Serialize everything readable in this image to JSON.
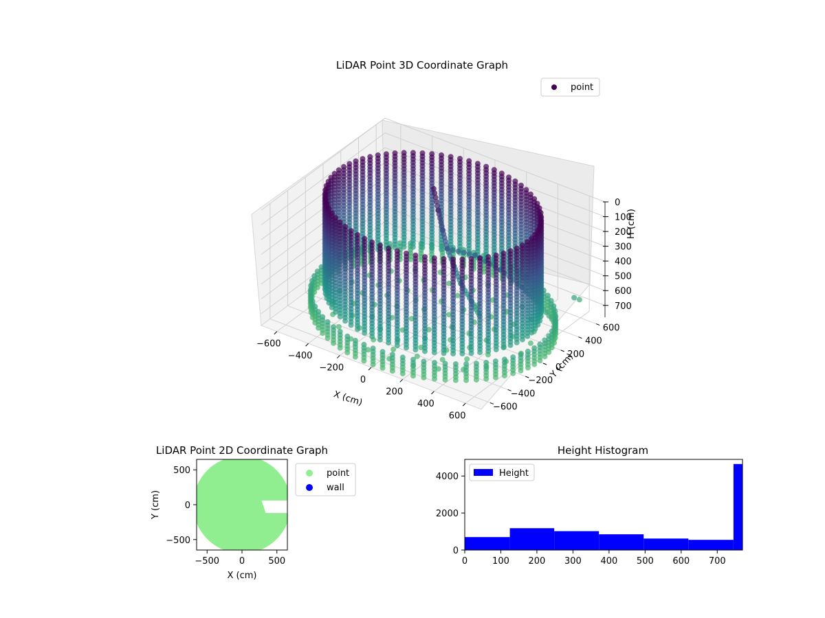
{
  "chart_data": [
    {
      "type": "scatter",
      "projection": "3d",
      "title": "LiDAR Point 3D Coordinate Graph",
      "xlabel": "X (cm)",
      "ylabel": "Y (cm)",
      "zlabel": "H (cm)",
      "xlim": [
        -700,
        700
      ],
      "ylim": [
        -700,
        700
      ],
      "zlim": [
        0,
        780
      ],
      "z_inverted": true,
      "xticks": [
        "−600",
        "−400",
        "−200",
        "0",
        "200",
        "400",
        "600"
      ],
      "yticks": [
        "−600",
        "−400",
        "−200",
        "0",
        "200",
        "400",
        "600"
      ],
      "zticks": [
        "0",
        "100",
        "200",
        "300",
        "400",
        "500",
        "600",
        "700"
      ],
      "colormap": "viridis",
      "legend": {
        "placement": "top-right",
        "entries": [
          {
            "name": "point",
            "color": "#440154"
          }
        ]
      },
      "point_groups": [
        {
          "shape": "cylinder",
          "center_x": 0,
          "center_y": 0,
          "radius": 600,
          "h_from": 0,
          "h_to": 640,
          "gap_angle_deg": 5
        },
        {
          "shape": "cylinder",
          "center_x": 0,
          "center_y": 0,
          "radius": 680,
          "h_from": 660,
          "h_to": 770,
          "gap_angle_deg": 5
        },
        {
          "shape": "disc",
          "center_x": 0,
          "center_y": 0,
          "radius": 560,
          "h": 770
        },
        {
          "shape": "polyline",
          "points": [
            [
              -120,
              220,
              30
            ],
            [
              -80,
              200,
              150
            ],
            [
              -40,
              180,
              260
            ],
            [
              0,
              160,
              360
            ],
            [
              60,
              130,
              440
            ],
            [
              120,
              100,
              520
            ],
            [
              200,
              80,
              600
            ],
            [
              260,
              60,
              660
            ]
          ]
        },
        {
          "shape": "polyline",
          "points": [
            [
              0,
              160,
              360
            ],
            [
              120,
              260,
              400
            ],
            [
              260,
              300,
              460
            ],
            [
              380,
              330,
              540
            ],
            [
              480,
              360,
              640
            ],
            [
              560,
              380,
              730
            ]
          ]
        },
        {
          "shape": "points",
          "points": [
            [
              560,
              600,
              660
            ],
            [
              560,
              660,
              700
            ]
          ]
        }
      ],
      "grid": true
    },
    {
      "type": "scatter",
      "title": "LiDAR Point 2D Coordinate Graph",
      "xlabel": "X (cm)",
      "ylabel": "Y (cm)",
      "xlim": [
        -650,
        650
      ],
      "ylim": [
        -650,
        650
      ],
      "xticks": [
        -500,
        0,
        500
      ],
      "yticks": [
        -500,
        0,
        500
      ],
      "legend": {
        "placement": "outside-right",
        "entries": [
          {
            "name": "point",
            "color": "#90ee90"
          },
          {
            "name": "wall",
            "color": "#0000ff"
          }
        ]
      },
      "region": {
        "shape": "disc",
        "center_x": 0,
        "center_y": 0,
        "radius": 700,
        "notch_x_from": 280,
        "notch_x_to": 650,
        "notch_y_from": -120,
        "notch_y_to": 60
      }
    },
    {
      "type": "bar",
      "title": "Height Histogram",
      "xlabel": "",
      "ylabel": "",
      "xlim": [
        0,
        770
      ],
      "ylim": [
        0,
        4900
      ],
      "xticks": [
        0,
        100,
        200,
        300,
        400,
        500,
        600,
        700
      ],
      "yticks": [
        0,
        2000,
        4000
      ],
      "bins": [
        {
          "from": 0,
          "to": 125,
          "count": 700
        },
        {
          "from": 125,
          "to": 248,
          "count": 1180
        },
        {
          "from": 248,
          "to": 372,
          "count": 1020
        },
        {
          "from": 372,
          "to": 496,
          "count": 850
        },
        {
          "from": 496,
          "to": 620,
          "count": 620
        },
        {
          "from": 620,
          "to": 745,
          "count": 550
        },
        {
          "from": 745,
          "to": 770,
          "count": 4650
        }
      ],
      "bar_color": "#0000ff",
      "legend": {
        "placement": "top-left",
        "entries": [
          {
            "name": "Height",
            "color": "#0000ff"
          }
        ]
      }
    }
  ]
}
